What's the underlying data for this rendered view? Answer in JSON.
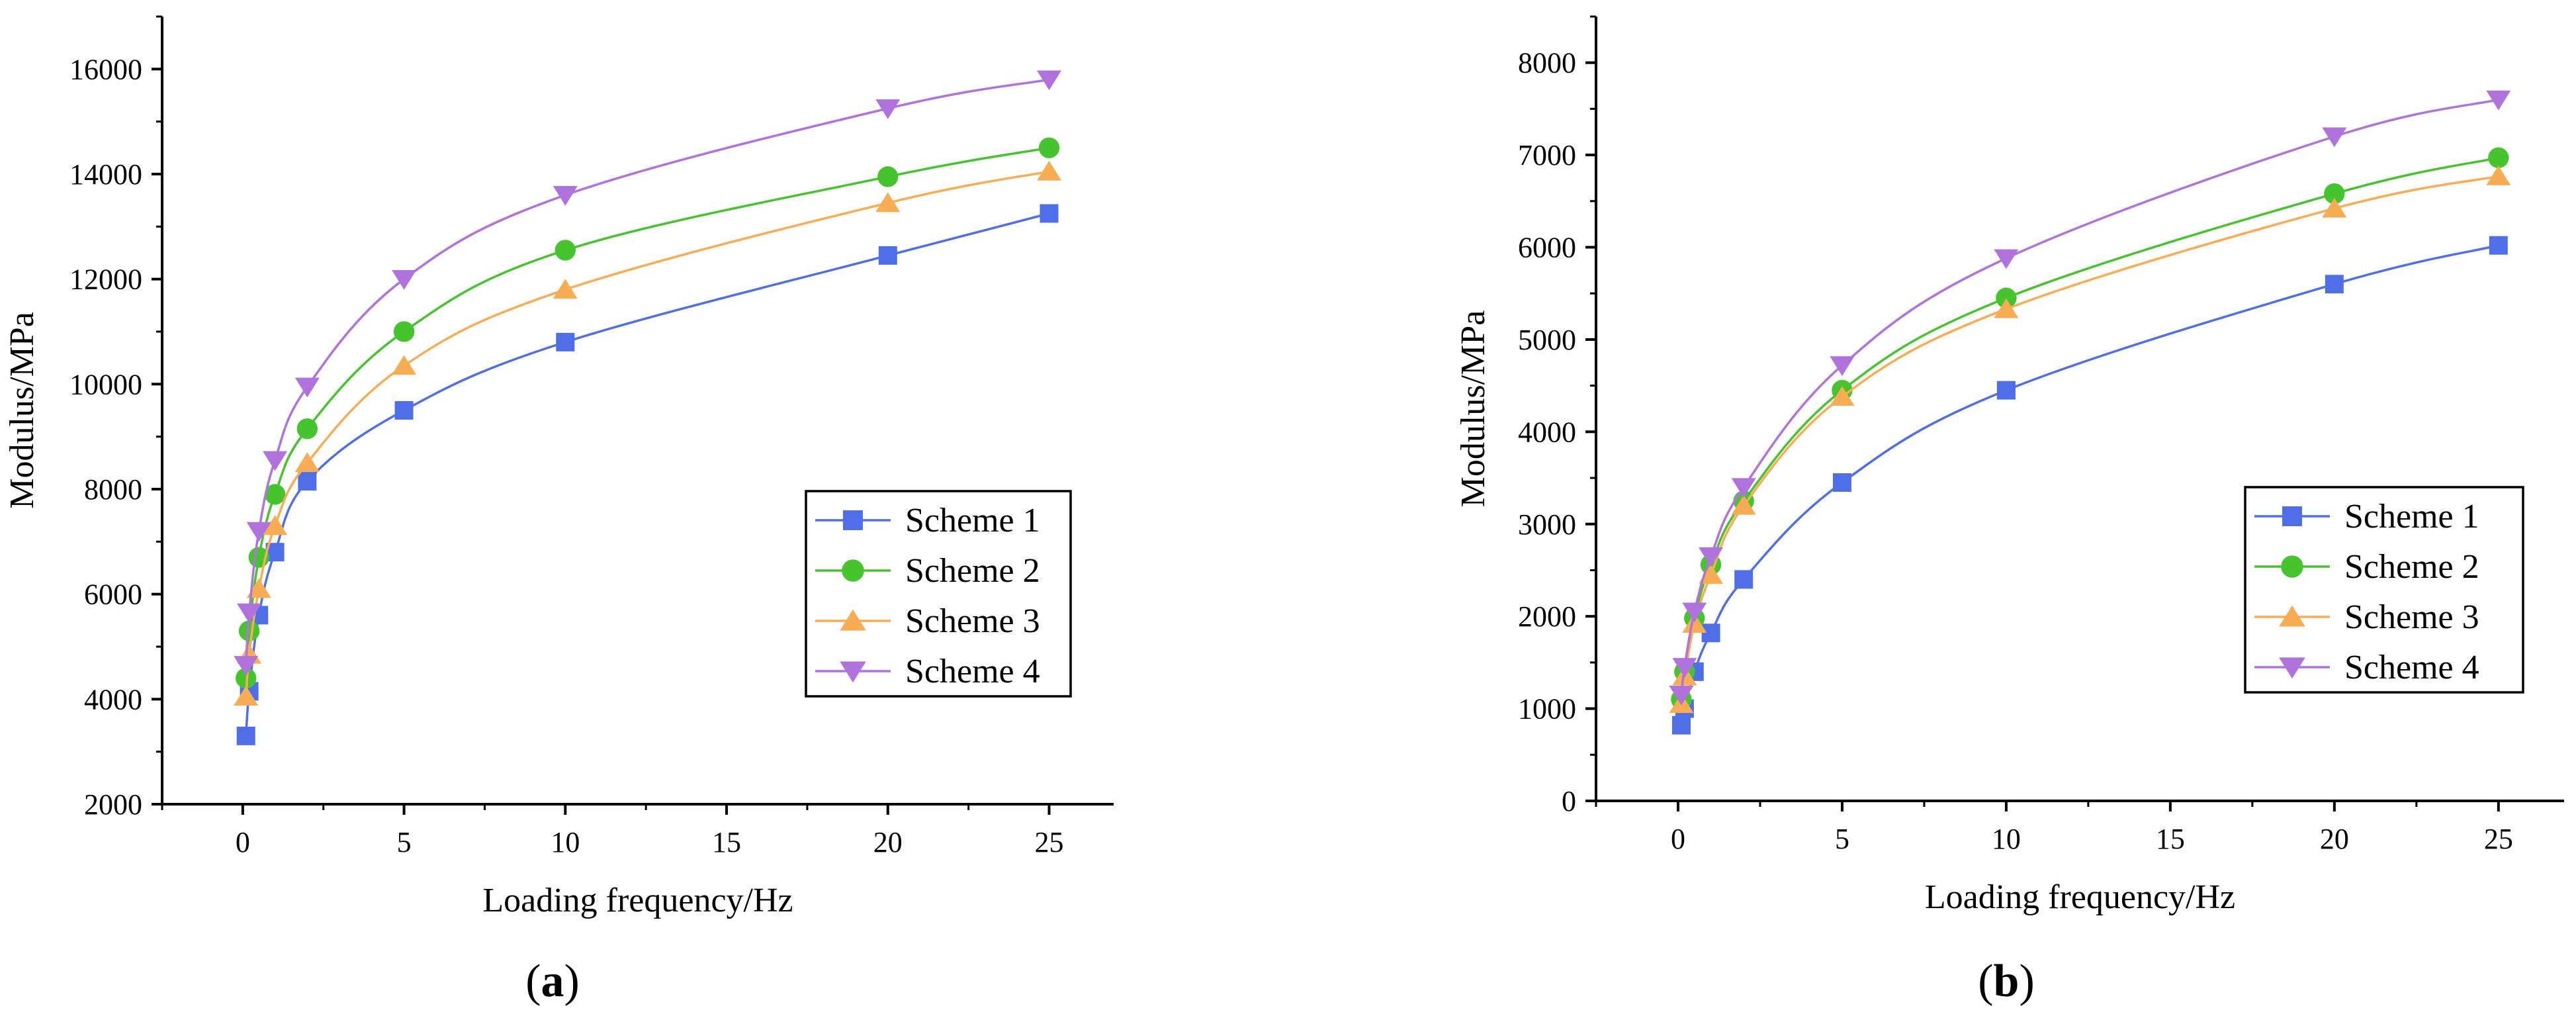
{
  "colors": {
    "scheme1": "#4f6fe8",
    "scheme2": "#45c42e",
    "scheme3": "#f8ad55",
    "scheme4": "#b072dd",
    "axis": "#000000"
  },
  "chart_data": [
    {
      "type": "line",
      "panel_label": "a",
      "title": "",
      "xlabel": "Loading frequency/Hz",
      "ylabel": "Modulus/MPa",
      "xlim": [
        -2.5,
        27
      ],
      "ylim": [
        2000,
        17000
      ],
      "xticks": [
        0,
        5,
        10,
        15,
        20,
        25
      ],
      "yticks": [
        2000,
        4000,
        6000,
        8000,
        10000,
        12000,
        14000,
        16000
      ],
      "x": [
        0.1,
        0.2,
        0.5,
        1,
        2,
        5,
        10,
        20,
        25
      ],
      "series": [
        {
          "name": "Scheme 1",
          "marker": "square",
          "color_key": "scheme1",
          "values": [
            3300,
            4150,
            5600,
            6800,
            8150,
            9500,
            10800,
            12450,
            13250
          ]
        },
        {
          "name": "Scheme 2",
          "marker": "circle",
          "color_key": "scheme2",
          "values": [
            4400,
            5300,
            6700,
            7900,
            9150,
            11000,
            12550,
            13950,
            14500
          ]
        },
        {
          "name": "Scheme 3",
          "marker": "triangle-up",
          "color_key": "scheme3",
          "values": [
            4050,
            4850,
            6100,
            7300,
            8500,
            10350,
            11800,
            13450,
            14050
          ]
        },
        {
          "name": "Scheme 4",
          "marker": "triangle-down",
          "color_key": "scheme4",
          "values": [
            4650,
            5650,
            7200,
            8550,
            9950,
            12000,
            13600,
            15250,
            15800
          ]
        }
      ]
    },
    {
      "type": "line",
      "panel_label": "b",
      "title": "",
      "xlabel": "Loading frequency/Hz",
      "ylabel": "Modulus/MPa",
      "xlim": [
        -2.5,
        27
      ],
      "ylim": [
        0,
        8500
      ],
      "xticks": [
        0,
        5,
        10,
        15,
        20,
        25
      ],
      "yticks": [
        0,
        1000,
        2000,
        3000,
        4000,
        5000,
        6000,
        7000,
        8000
      ],
      "x": [
        0.1,
        0.2,
        0.5,
        1,
        2,
        5,
        10,
        20,
        25
      ],
      "series": [
        {
          "name": "Scheme 1",
          "marker": "square",
          "color_key": "scheme1",
          "values": [
            820,
            1000,
            1400,
            1820,
            2400,
            3450,
            4450,
            5600,
            6020
          ]
        },
        {
          "name": "Scheme 2",
          "marker": "circle",
          "color_key": "scheme2",
          "values": [
            1100,
            1400,
            1980,
            2560,
            3250,
            4450,
            5450,
            6580,
            6970
          ]
        },
        {
          "name": "Scheme 3",
          "marker": "triangle-up",
          "color_key": "scheme3",
          "values": [
            1050,
            1350,
            1920,
            2450,
            3200,
            4380,
            5330,
            6420,
            6770
          ]
        },
        {
          "name": "Scheme 4",
          "marker": "triangle-down",
          "color_key": "scheme4",
          "values": [
            1150,
            1450,
            2050,
            2650,
            3400,
            4720,
            5880,
            7200,
            7600
          ]
        }
      ]
    }
  ]
}
